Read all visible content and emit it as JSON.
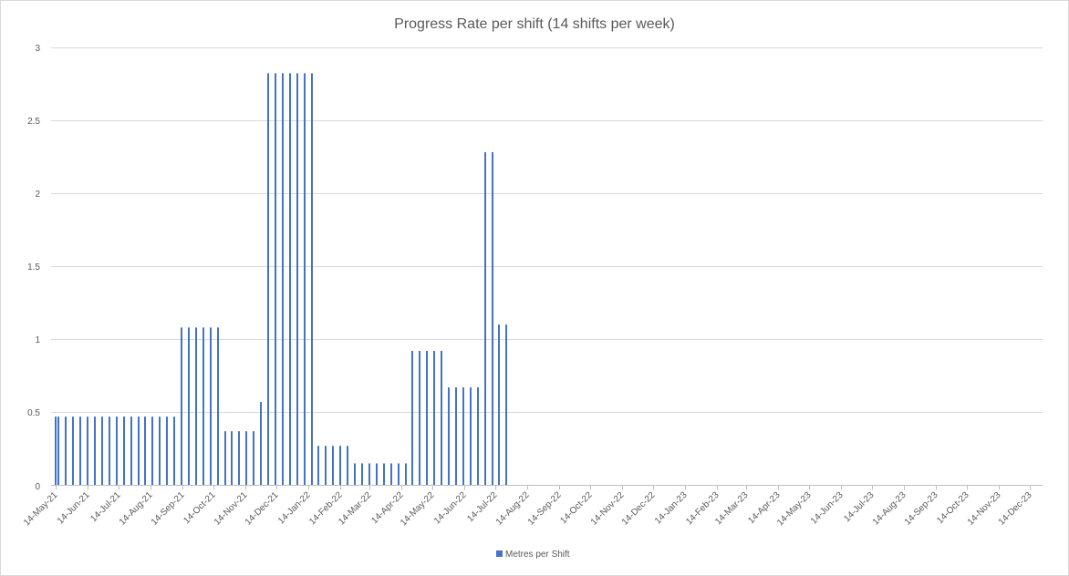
{
  "chart_data": {
    "type": "bar",
    "title": "Progress Rate per shift (14 shifts per week)",
    "xlabel": "",
    "ylabel": "",
    "ylim": [
      0,
      3
    ],
    "yticks": [
      "0",
      "0.5",
      "1",
      "1.5",
      "2",
      "2.5",
      "3"
    ],
    "grid": true,
    "legend_position": "bottom",
    "colors": {
      "bar": "#4472c4",
      "grid": "#d9d9d9",
      "axis": "#bfbfbf"
    },
    "x_tick_labels": [
      "14-May-21",
      "14-Jun-21",
      "14-Jul-21",
      "14-Aug-21",
      "14-Sep-21",
      "14-Oct-21",
      "14-Nov-21",
      "14-Dec-21",
      "14-Jan-22",
      "14-Feb-22",
      "14-Mar-22",
      "14-Apr-22",
      "14-May-22",
      "14-Jun-22",
      "14-Jul-22",
      "14-Aug-22",
      "14-Sep-22",
      "14-Oct-22",
      "14-Nov-22",
      "14-Dec-22",
      "14-Jan-23",
      "14-Feb-23",
      "14-Mar-23",
      "14-Apr-23",
      "14-May-23",
      "14-Jun-23",
      "14-Jul-23",
      "14-Aug-23",
      "14-Sep-23",
      "14-Oct-23",
      "14-Nov-23",
      "14-Dec-23"
    ],
    "series": [
      {
        "name": "Metres per Shift",
        "points": [
          {
            "x": "2021-05-14",
            "y": 0.47
          },
          {
            "x": "2021-05-17",
            "y": 0.47
          },
          {
            "x": "2021-05-24",
            "y": 0.47
          },
          {
            "x": "2021-05-31",
            "y": 0.47
          },
          {
            "x": "2021-06-07",
            "y": 0.47
          },
          {
            "x": "2021-06-14",
            "y": 0.47
          },
          {
            "x": "2021-06-21",
            "y": 0.47
          },
          {
            "x": "2021-06-28",
            "y": 0.47
          },
          {
            "x": "2021-07-05",
            "y": 0.47
          },
          {
            "x": "2021-07-12",
            "y": 0.47
          },
          {
            "x": "2021-07-19",
            "y": 0.47
          },
          {
            "x": "2021-07-26",
            "y": 0.47
          },
          {
            "x": "2021-08-02",
            "y": 0.47
          },
          {
            "x": "2021-08-09",
            "y": 0.47
          },
          {
            "x": "2021-08-16",
            "y": 0.47
          },
          {
            "x": "2021-08-23",
            "y": 0.47
          },
          {
            "x": "2021-08-30",
            "y": 0.47
          },
          {
            "x": "2021-09-06",
            "y": 0.47
          },
          {
            "x": "2021-09-13",
            "y": 1.08
          },
          {
            "x": "2021-09-20",
            "y": 1.08
          },
          {
            "x": "2021-09-27",
            "y": 1.08
          },
          {
            "x": "2021-10-04",
            "y": 1.08
          },
          {
            "x": "2021-10-11",
            "y": 1.08
          },
          {
            "x": "2021-10-18",
            "y": 1.08
          },
          {
            "x": "2021-10-25",
            "y": 0.37
          },
          {
            "x": "2021-11-01",
            "y": 0.37
          },
          {
            "x": "2021-11-08",
            "y": 0.37
          },
          {
            "x": "2021-11-15",
            "y": 0.37
          },
          {
            "x": "2021-11-22",
            "y": 0.37
          },
          {
            "x": "2021-11-29",
            "y": 0.57
          },
          {
            "x": "2021-12-06",
            "y": 2.82
          },
          {
            "x": "2021-12-13",
            "y": 2.82
          },
          {
            "x": "2021-12-20",
            "y": 2.82
          },
          {
            "x": "2021-12-27",
            "y": 2.82
          },
          {
            "x": "2022-01-03",
            "y": 2.82
          },
          {
            "x": "2022-01-10",
            "y": 2.82
          },
          {
            "x": "2022-01-17",
            "y": 2.82
          },
          {
            "x": "2022-01-24",
            "y": 0.27
          },
          {
            "x": "2022-01-31",
            "y": 0.27
          },
          {
            "x": "2022-02-07",
            "y": 0.27
          },
          {
            "x": "2022-02-14",
            "y": 0.27
          },
          {
            "x": "2022-02-21",
            "y": 0.27
          },
          {
            "x": "2022-02-28",
            "y": 0.15
          },
          {
            "x": "2022-03-07",
            "y": 0.15
          },
          {
            "x": "2022-03-14",
            "y": 0.15
          },
          {
            "x": "2022-03-21",
            "y": 0.15
          },
          {
            "x": "2022-03-28",
            "y": 0.15
          },
          {
            "x": "2022-04-04",
            "y": 0.15
          },
          {
            "x": "2022-04-11",
            "y": 0.15
          },
          {
            "x": "2022-04-18",
            "y": 0.15
          },
          {
            "x": "2022-04-25",
            "y": 0.92
          },
          {
            "x": "2022-05-02",
            "y": 0.92
          },
          {
            "x": "2022-05-09",
            "y": 0.92
          },
          {
            "x": "2022-05-16",
            "y": 0.92
          },
          {
            "x": "2022-05-23",
            "y": 0.92
          },
          {
            "x": "2022-05-30",
            "y": 0.67
          },
          {
            "x": "2022-06-06",
            "y": 0.67
          },
          {
            "x": "2022-06-13",
            "y": 0.67
          },
          {
            "x": "2022-06-20",
            "y": 0.67
          },
          {
            "x": "2022-06-27",
            "y": 0.67
          },
          {
            "x": "2022-07-04",
            "y": 2.28
          },
          {
            "x": "2022-07-11",
            "y": 2.28
          },
          {
            "x": "2022-07-18",
            "y": 1.1
          },
          {
            "x": "2022-07-25",
            "y": 1.1
          }
        ]
      }
    ]
  }
}
